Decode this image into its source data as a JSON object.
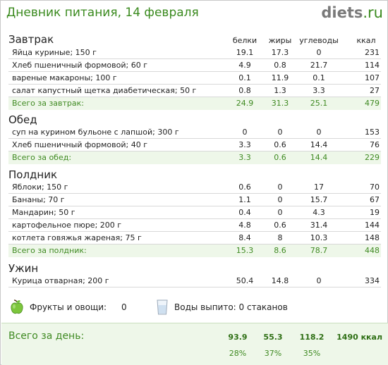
{
  "header": {
    "title": "Дневник питания, 14 февраля",
    "logo_part1": "diets",
    "logo_part2": ".ru"
  },
  "columns": {
    "protein": "белки",
    "fat": "жиры",
    "carbs": "углеводы",
    "kcal": "ккал"
  },
  "meals": {
    "breakfast": {
      "title": "Завтрак",
      "items": [
        {
          "name": "Яйца куриные; 150 г",
          "p": "19.1",
          "f": "17.3",
          "c": "0",
          "k": "231"
        },
        {
          "name": "Хлеб пшеничный формовой; 60 г",
          "p": "4.9",
          "f": "0.8",
          "c": "21.7",
          "k": "114"
        },
        {
          "name": "вареные макароны; 100 г",
          "p": "0.1",
          "f": "11.9",
          "c": "0.1",
          "k": "107"
        },
        {
          "name": "салат капустный щетка диабетическая; 50 г",
          "p": "0.8",
          "f": "1.3",
          "c": "3.3",
          "k": "27"
        }
      ],
      "total": {
        "label": "Всего за завтрак:",
        "p": "24.9",
        "f": "31.3",
        "c": "25.1",
        "k": "479"
      }
    },
    "lunch": {
      "title": "Обед",
      "items": [
        {
          "name": "суп на курином бульоне с лапшой; 300 г",
          "p": "0",
          "f": "0",
          "c": "0",
          "k": "153"
        },
        {
          "name": "Хлеб пшеничный формовой; 40 г",
          "p": "3.3",
          "f": "0.6",
          "c": "14.4",
          "k": "76"
        }
      ],
      "total": {
        "label": "Всего за обед:",
        "p": "3.3",
        "f": "0.6",
        "c": "14.4",
        "k": "229"
      }
    },
    "snack": {
      "title": "Полдник",
      "items": [
        {
          "name": "Яблоки; 150 г",
          "p": "0.6",
          "f": "0",
          "c": "17",
          "k": "70"
        },
        {
          "name": "Бананы; 70 г",
          "p": "1.1",
          "f": "0",
          "c": "15.7",
          "k": "67"
        },
        {
          "name": "Мандарин; 50 г",
          "p": "0.4",
          "f": "0",
          "c": "4.3",
          "k": "19"
        },
        {
          "name": "картофельное пюре; 200 г",
          "p": "4.8",
          "f": "0.6",
          "c": "31.4",
          "k": "144"
        },
        {
          "name": "котлета говяжья жареная; 75 г",
          "p": "8.4",
          "f": "8",
          "c": "10.3",
          "k": "148"
        }
      ],
      "total": {
        "label": "Всего за полдник:",
        "p": "15.3",
        "f": "8.6",
        "c": "78.7",
        "k": "448"
      }
    },
    "dinner": {
      "title": "Ужин",
      "items": [
        {
          "name": "Курица отварная; 200 г",
          "p": "50.4",
          "f": "14.8",
          "c": "0",
          "k": "334"
        }
      ]
    }
  },
  "extras": {
    "fruit_label": "Фрукты и овощи:",
    "fruit_value": "0",
    "water_label": "Воды выпито: 0 стаканов"
  },
  "day_total": {
    "label": "Всего за день:",
    "p": "93.9",
    "f": "55.3",
    "c": "118.2",
    "k": "1490 ккал",
    "p_pct": "28%",
    "f_pct": "37%",
    "c_pct": "35%"
  },
  "colors": {
    "accent": "#3a8a1e",
    "total_bg": "#eef7e9",
    "total_text": "#3f8a22"
  }
}
